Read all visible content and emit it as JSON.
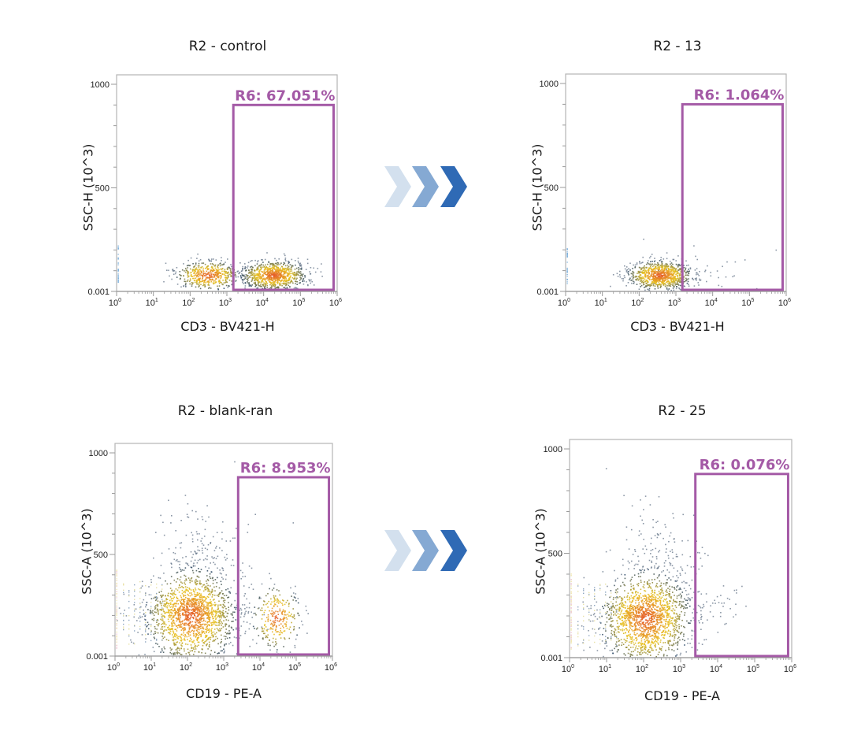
{
  "figure": {
    "colors": {
      "gate": "#a45aa6",
      "axis": "#9a9a9a",
      "arrow_light": "#d3e0ee",
      "arrow_mid": "#85a9d3",
      "arrow_dark": "#2f6ab5",
      "density_low": "#1c3f73",
      "density_mid": "#e8c21e",
      "density_high": "#e6552a"
    },
    "arrow_icons": [
      "chevron-right-icon",
      "chevron-right-icon",
      "chevron-right-icon"
    ]
  },
  "chart_data": [
    {
      "type": "scatter",
      "title": "R2 - control",
      "xlabel": "CD3 - BV421-H",
      "ylabel": "SSC-H (10^3)",
      "xscale": "log",
      "xlim": [
        1,
        1000000
      ],
      "ylim": [
        0.001,
        1000
      ],
      "x_ticks": [
        "10^0",
        "10^1",
        "10^2",
        "10^3",
        "10^4",
        "10^5",
        "10^6"
      ],
      "y_ticks": [
        "0.001",
        "500",
        "1000"
      ],
      "gate": {
        "name": "R6",
        "label": "R6: 67.051%",
        "percent": 67.051,
        "x_range": [
          1500,
          800000
        ],
        "y_range": [
          0.001,
          900
        ]
      },
      "populations": [
        {
          "name": "CD3-negative",
          "x_center": 300,
          "y_center": 80,
          "relative_density": 0.55
        },
        {
          "name": "CD3-positive",
          "x_center": 18000,
          "y_center": 80,
          "relative_density": 1.0
        }
      ]
    },
    {
      "type": "scatter",
      "title": "R2 - 13",
      "xlabel": "CD3 - BV421-H",
      "ylabel": "SSC-H (10^3)",
      "xscale": "log",
      "xlim": [
        1,
        1000000
      ],
      "ylim": [
        0.001,
        1000
      ],
      "x_ticks": [
        "10^0",
        "10^1",
        "10^2",
        "10^3",
        "10^4",
        "10^5",
        "10^6"
      ],
      "y_ticks": [
        "0.001",
        "500",
        "1000"
      ],
      "gate": {
        "name": "R6",
        "label": "R6: 1.064%",
        "percent": 1.064,
        "x_range": [
          1500,
          800000
        ],
        "y_range": [
          0.001,
          900
        ]
      },
      "populations": [
        {
          "name": "CD3-negative",
          "x_center": 350,
          "y_center": 80,
          "relative_density": 1.0
        },
        {
          "name": "CD3-positive (sparse)",
          "x_center": 8000,
          "y_center": 110,
          "relative_density": 0.02
        }
      ]
    },
    {
      "type": "scatter",
      "title": "R2 - blank-ran",
      "xlabel": "CD19 - PE-A",
      "ylabel": "SSC-A (10^3)",
      "xscale": "log",
      "xlim": [
        1,
        1000000
      ],
      "ylim": [
        0.001,
        1000
      ],
      "x_ticks": [
        "10^0",
        "10^1",
        "10^2",
        "10^3",
        "10^4",
        "10^5",
        "10^6"
      ],
      "y_ticks": [
        "0.001",
        "500",
        "1000"
      ],
      "gate": {
        "name": "R6",
        "label": "R6: 8.953%",
        "percent": 8.953,
        "x_range": [
          2500,
          800000
        ],
        "y_range": [
          0.001,
          880
        ]
      },
      "populations": [
        {
          "name": "CD19-negative",
          "x_center": 120,
          "y_center": 200,
          "relative_density": 1.0
        },
        {
          "name": "CD19-positive",
          "x_center": 28000,
          "y_center": 190,
          "relative_density": 0.15
        }
      ]
    },
    {
      "type": "scatter",
      "title": "R2 - 25",
      "xlabel": "CD19 - PE-A",
      "ylabel": "SSC-A (10^3)",
      "xscale": "log",
      "xlim": [
        1,
        1000000
      ],
      "ylim": [
        0.001,
        1000
      ],
      "x_ticks": [
        "10^0",
        "10^1",
        "10^2",
        "10^3",
        "10^4",
        "10^5",
        "10^6"
      ],
      "y_ticks": [
        "0.001",
        "500",
        "1000"
      ],
      "gate": {
        "name": "R6",
        "label": "R6: 0.076%",
        "percent": 0.076,
        "x_range": [
          2500,
          800000
        ],
        "y_range": [
          0.001,
          880
        ]
      },
      "populations": [
        {
          "name": "CD19-negative",
          "x_center": 110,
          "y_center": 190,
          "relative_density": 1.0
        },
        {
          "name": "CD19-positive (sparse)",
          "x_center": 15000,
          "y_center": 240,
          "relative_density": 0.005
        }
      ]
    }
  ]
}
